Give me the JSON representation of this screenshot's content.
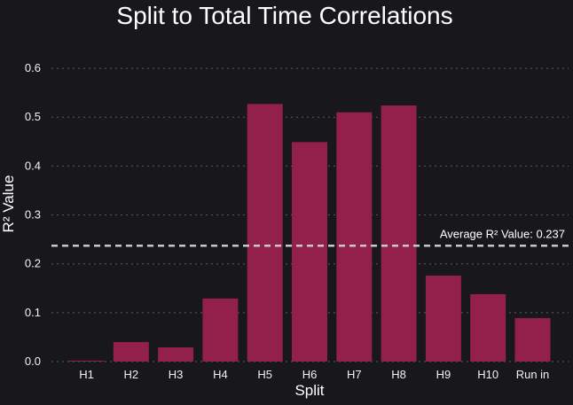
{
  "chart_data": {
    "type": "bar",
    "title": "Split to Total Time Correlations",
    "xlabel": "Split",
    "ylabel": "R² Value",
    "categories": [
      "H1",
      "H2",
      "H3",
      "H4",
      "H5",
      "H6",
      "H7",
      "H8",
      "H9",
      "H10",
      "Run in"
    ],
    "values": [
      0.002,
      0.04,
      0.029,
      0.129,
      0.527,
      0.449,
      0.51,
      0.524,
      0.176,
      0.138,
      0.089
    ],
    "ylim": [
      0,
      0.64
    ],
    "yticks": [
      "0.0",
      "0.1",
      "0.2",
      "0.3",
      "0.4",
      "0.5",
      "0.6"
    ],
    "grid": true,
    "average_line": {
      "value": 0.237,
      "label": "Average R² Value: 0.237"
    },
    "colors": {
      "bar": "#922048",
      "background": "#18181c",
      "grid": "#5a5a60",
      "average_line": "#c8c8c8",
      "text": "#ffffff"
    }
  }
}
